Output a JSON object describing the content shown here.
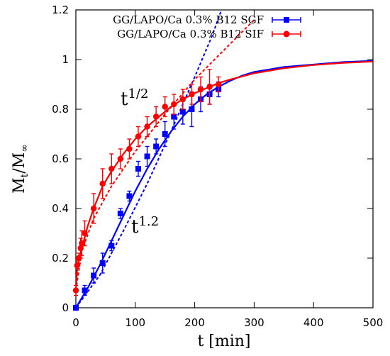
{
  "chart_data": {
    "type": "scatter",
    "xlabel": "t [min]",
    "ylabel": "M",
    "ylabel_sub_t": "t",
    "ylabel_sub_inf": "∞",
    "xlim": [
      0,
      500
    ],
    "ylim": [
      0,
      1.2
    ],
    "xticks": [
      0,
      100,
      200,
      300,
      400,
      500
    ],
    "yticks": [
      0,
      0.2,
      0.4,
      0.6,
      0.8,
      1,
      1.2
    ],
    "xtick_labels": [
      "0",
      "100",
      "200",
      "300",
      "400",
      "500"
    ],
    "ytick_labels": [
      "0",
      "0.2",
      "0.4",
      "0.6",
      "0.8",
      "1",
      "1.2"
    ],
    "grid": false,
    "legend_position": "top-right",
    "annotations": {
      "red_base": "t",
      "red_exp": "1/2",
      "blue_base": "t",
      "blue_exp": "1.2"
    },
    "series": [
      {
        "name": "GG/LAPO/Ca 0.3% B12  SGF",
        "color": "#0000ff",
        "marker": "square",
        "points": [
          {
            "x": 0,
            "y": 0.0,
            "err": 0.01
          },
          {
            "x": 15,
            "y": 0.07,
            "err": 0.02
          },
          {
            "x": 30,
            "y": 0.13,
            "err": 0.03
          },
          {
            "x": 45,
            "y": 0.18,
            "err": 0.04
          },
          {
            "x": 60,
            "y": 0.25,
            "err": 0.02
          },
          {
            "x": 75,
            "y": 0.38,
            "err": 0.02
          },
          {
            "x": 90,
            "y": 0.45,
            "err": 0.02
          },
          {
            "x": 105,
            "y": 0.56,
            "err": 0.03
          },
          {
            "x": 120,
            "y": 0.61,
            "err": 0.04
          },
          {
            "x": 135,
            "y": 0.65,
            "err": 0.03
          },
          {
            "x": 150,
            "y": 0.7,
            "err": 0.05
          },
          {
            "x": 165,
            "y": 0.77,
            "err": 0.05
          },
          {
            "x": 180,
            "y": 0.79,
            "err": 0.05
          },
          {
            "x": 195,
            "y": 0.8,
            "err": 0.07
          },
          {
            "x": 210,
            "y": 0.84,
            "err": 0.05
          },
          {
            "x": 225,
            "y": 0.86,
            "err": 0.04
          },
          {
            "x": 240,
            "y": 0.88,
            "err": 0.03
          }
        ],
        "fit": [
          [
            0,
            0
          ],
          [
            20,
            0.08
          ],
          [
            40,
            0.17
          ],
          [
            60,
            0.27
          ],
          [
            80,
            0.37
          ],
          [
            100,
            0.47
          ],
          [
            120,
            0.56
          ],
          [
            140,
            0.64
          ],
          [
            160,
            0.71
          ],
          [
            180,
            0.77
          ],
          [
            200,
            0.82
          ],
          [
            220,
            0.86
          ],
          [
            240,
            0.89
          ],
          [
            260,
            0.915
          ],
          [
            280,
            0.935
          ],
          [
            300,
            0.95
          ],
          [
            350,
            0.97
          ],
          [
            400,
            0.98
          ],
          [
            450,
            0.99
          ],
          [
            500,
            0.995
          ]
        ],
        "powerlaw": [
          [
            0,
            0
          ],
          [
            40,
            0.13
          ],
          [
            80,
            0.31
          ],
          [
            120,
            0.5
          ],
          [
            160,
            0.71
          ],
          [
            200,
            0.93
          ],
          [
            230,
            1.1
          ],
          [
            245,
            1.2
          ]
        ]
      },
      {
        "name": "GG/LAPO/Ca 0.3% B12  SIF",
        "color": "#ff0000",
        "marker": "circle",
        "points": [
          {
            "x": 0,
            "y": 0.07,
            "err": 0.02
          },
          {
            "x": 2,
            "y": 0.17,
            "err": 0.03
          },
          {
            "x": 5,
            "y": 0.2,
            "err": 0.02
          },
          {
            "x": 8,
            "y": 0.24,
            "err": 0.04
          },
          {
            "x": 10,
            "y": 0.26,
            "err": 0.05
          },
          {
            "x": 15,
            "y": 0.3,
            "err": 0.05
          },
          {
            "x": 30,
            "y": 0.4,
            "err": 0.06
          },
          {
            "x": 45,
            "y": 0.5,
            "err": 0.06
          },
          {
            "x": 60,
            "y": 0.56,
            "err": 0.06
          },
          {
            "x": 75,
            "y": 0.6,
            "err": 0.04
          },
          {
            "x": 90,
            "y": 0.64,
            "err": 0.04
          },
          {
            "x": 105,
            "y": 0.69,
            "err": 0.04
          },
          {
            "x": 120,
            "y": 0.73,
            "err": 0.04
          },
          {
            "x": 135,
            "y": 0.77,
            "err": 0.04
          },
          {
            "x": 150,
            "y": 0.81,
            "err": 0.04
          },
          {
            "x": 165,
            "y": 0.82,
            "err": 0.04
          },
          {
            "x": 180,
            "y": 0.84,
            "err": 0.04
          },
          {
            "x": 195,
            "y": 0.86,
            "err": 0.04
          },
          {
            "x": 210,
            "y": 0.88,
            "err": 0.05
          },
          {
            "x": 225,
            "y": 0.89,
            "err": 0.07
          },
          {
            "x": 240,
            "y": 0.9,
            "err": 0.03
          }
        ],
        "fit": [
          [
            0,
            0.07
          ],
          [
            2,
            0.15
          ],
          [
            5,
            0.19
          ],
          [
            10,
            0.24
          ],
          [
            20,
            0.33
          ],
          [
            30,
            0.4
          ],
          [
            45,
            0.49
          ],
          [
            60,
            0.55
          ],
          [
            80,
            0.62
          ],
          [
            100,
            0.68
          ],
          [
            120,
            0.73
          ],
          [
            140,
            0.77
          ],
          [
            160,
            0.81
          ],
          [
            180,
            0.84
          ],
          [
            200,
            0.865
          ],
          [
            220,
            0.885
          ],
          [
            240,
            0.905
          ],
          [
            260,
            0.92
          ],
          [
            300,
            0.945
          ],
          [
            350,
            0.965
          ],
          [
            400,
            0.978
          ],
          [
            450,
            0.987
          ],
          [
            500,
            0.992
          ]
        ],
        "powerlaw": [
          [
            0,
            0.07
          ],
          [
            10,
            0.23
          ],
          [
            30,
            0.36
          ],
          [
            60,
            0.49
          ],
          [
            100,
            0.63
          ],
          [
            150,
            0.78
          ],
          [
            200,
            0.92
          ],
          [
            250,
            1.04
          ],
          [
            300,
            1.16
          ]
        ]
      }
    ]
  }
}
